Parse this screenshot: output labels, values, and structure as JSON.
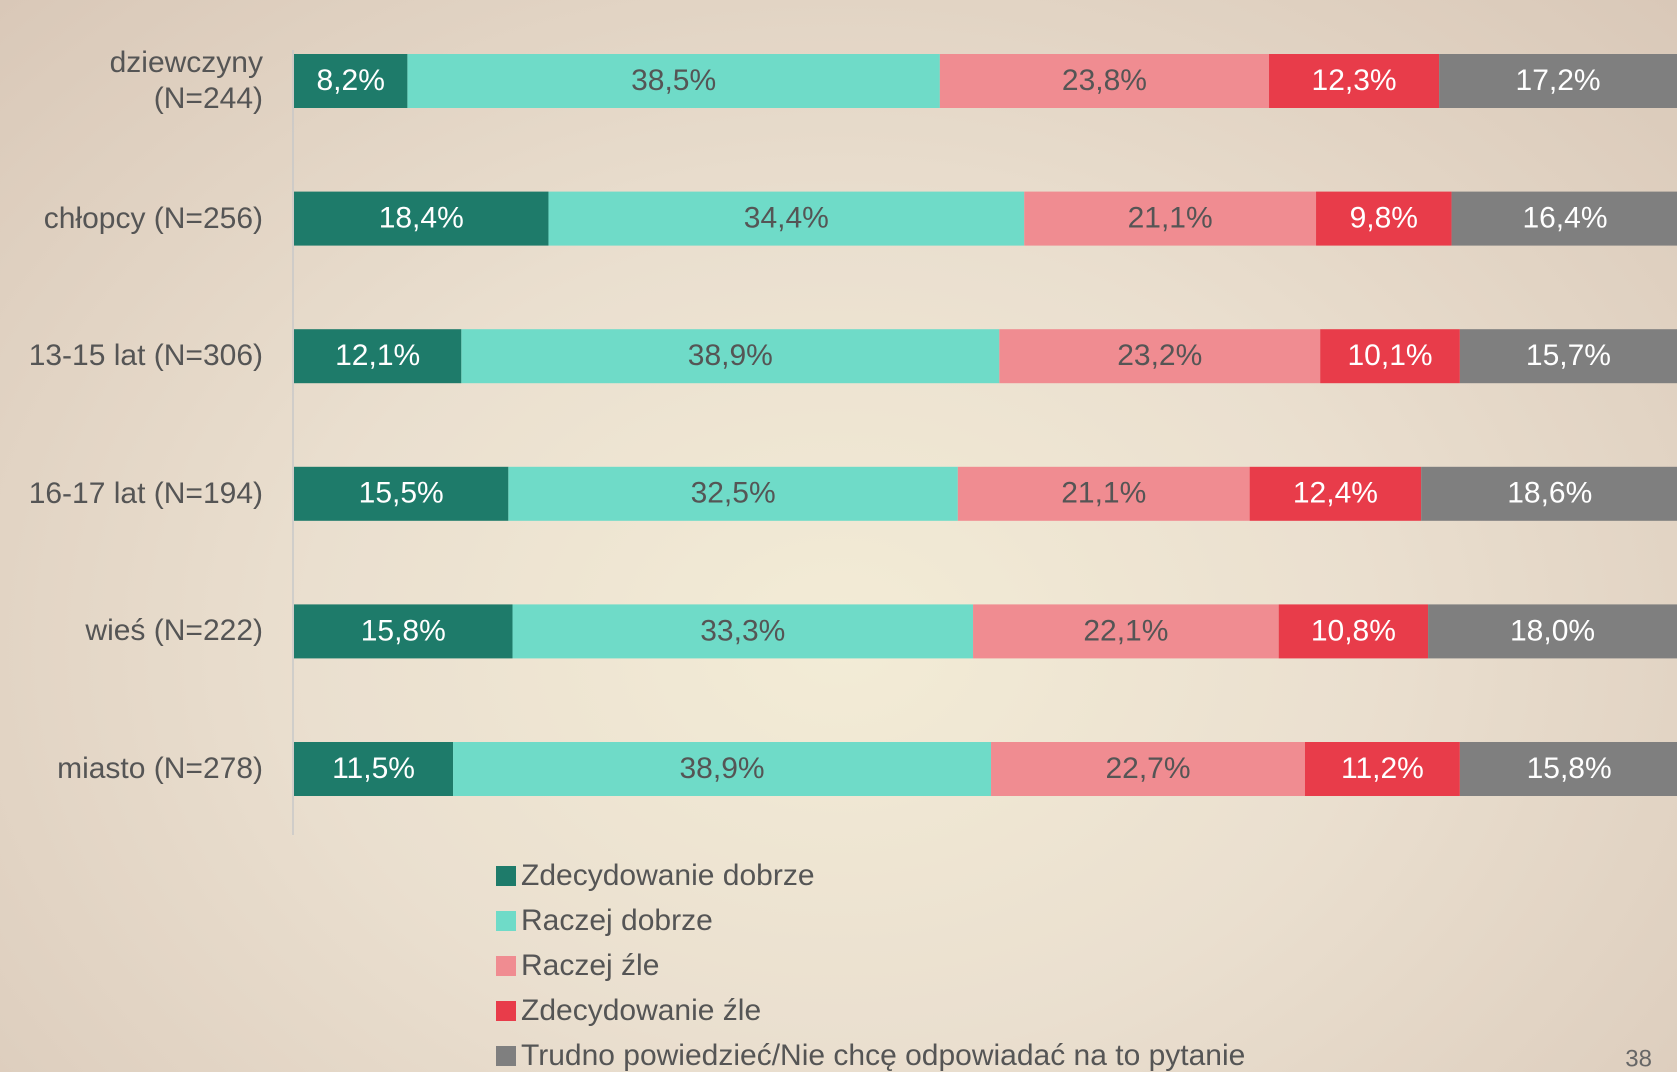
{
  "chart_data": {
    "type": "stacked_bar_horizontal",
    "categories": [
      "dziewczyny\n(N=244)",
      "chłopcy (N=256)",
      "13-15 lat (N=306)",
      "16-17 lat (N=194)",
      "wieś (N=222)",
      "miasto (N=278)"
    ],
    "series": [
      {
        "name": "Zdecydowanie dobrze",
        "color": "#1e7b6a",
        "values": [
          8.2,
          18.4,
          12.1,
          15.5,
          15.8,
          11.5
        ],
        "value_labels": [
          "8,2%",
          "18,4%",
          "12,1%",
          "15,5%",
          "15,8%",
          "11,5%"
        ]
      },
      {
        "name": "Raczej dobrze",
        "color": "#6fdbc8",
        "values": [
          38.5,
          34.4,
          38.9,
          32.5,
          33.3,
          38.9
        ],
        "value_labels": [
          "38,5%",
          "34,4%",
          "38,9%",
          "32,5%",
          "33,3%",
          "38,9%"
        ]
      },
      {
        "name": "Raczej źle",
        "color": "#f08c91",
        "values": [
          23.8,
          21.1,
          23.2,
          21.1,
          22.1,
          22.7
        ],
        "value_labels": [
          "23,8%",
          "21,1%",
          "23,2%",
          "21,1%",
          "22,1%",
          "22,7%"
        ]
      },
      {
        "name": "Zdecydowanie źle",
        "color": "#e83c4a",
        "values": [
          12.3,
          9.8,
          10.1,
          12.4,
          10.8,
          11.2
        ],
        "value_labels": [
          "12,3%",
          "9,8%",
          "10,1%",
          "12,4%",
          "10,8%",
          "11,2%"
        ]
      },
      {
        "name": "Trudno powiedzieć/Nie chcę odpowiadać na to pytanie",
        "color": "#7f7f7f",
        "values": [
          17.2,
          16.4,
          15.7,
          18.6,
          18.0,
          15.8
        ],
        "value_labels": [
          "17,2%",
          "16,4%",
          "15,7%",
          "18,6%",
          "18,0%",
          "15,8%"
        ]
      }
    ],
    "xlim": [
      0,
      100
    ]
  },
  "page_number": "38"
}
